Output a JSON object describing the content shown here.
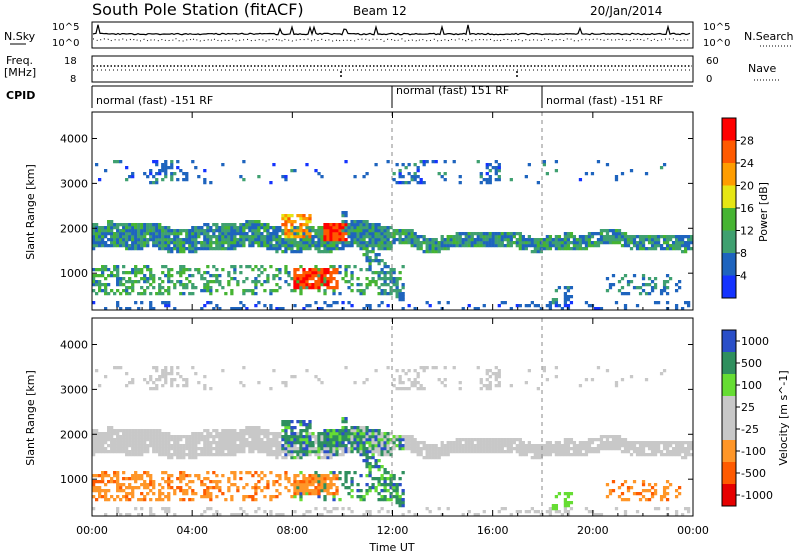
{
  "header": {
    "station": "South Pole Station (fitACF)",
    "beam": "Beam 12",
    "date": "20/Jan/2014"
  },
  "strip_panels": {
    "nsky": {
      "left_label": "N.Sky",
      "right_label": "N.Search",
      "ticks_left": [
        "10^5",
        "10^0"
      ],
      "ticks_right": [
        "10^5",
        "10^0"
      ]
    },
    "freq": {
      "left_label_1": "Freq.",
      "left_label_2": "[MHz]",
      "ticks_left": [
        "18",
        "8"
      ],
      "right_label": "Nave",
      "ticks_right": [
        "60",
        "0"
      ]
    },
    "cpid": {
      "label": "CPID",
      "segments": [
        {
          "label": "normal (fast) -151 RF",
          "start_hour": 0
        },
        {
          "label": "normal (fast) 151 RF",
          "start_hour": 12
        },
        {
          "label": "normal (fast) -151 RF",
          "start_hour": 18
        }
      ]
    }
  },
  "colors": {
    "power": [
      "#1433ff",
      "#1e64be",
      "#3fa070",
      "#46b432",
      "#e6e614",
      "#ff9d00",
      "#ff5a00",
      "#ff0000"
    ],
    "velocity": [
      "#e60000",
      "#ff5a00",
      "#ff9628",
      "#c8c8c8",
      "#c8c8c8",
      "#66dd33",
      "#2f8f5e",
      "#2a4fc8"
    ],
    "ground_scatter": "#c8c8c8"
  },
  "chart_data": [
    {
      "type": "heatmap",
      "title": "Power",
      "xlabel": "",
      "ylabel": "Slant Range [km]",
      "x_ticks": [
        "00:00",
        "04:00",
        "08:00",
        "12:00",
        "16:00",
        "20:00",
        "00:00"
      ],
      "xlim_hours": [
        0,
        24
      ],
      "y_ticks": [
        1000,
        2000,
        3000,
        4000
      ],
      "ylim_km": [
        180,
        4590
      ],
      "colorbar": {
        "label": "Power [dB]",
        "range": [
          0,
          32
        ],
        "ticks": [
          4,
          8,
          12,
          16,
          20,
          24,
          28
        ]
      },
      "features": [
        {
          "name": "main_band",
          "hours": [
            0,
            24
          ],
          "range_km": [
            1500,
            2150
          ],
          "level": "moderate"
        },
        {
          "name": "near_range_echo",
          "hours": [
            0,
            12.5
          ],
          "range_km": [
            500,
            1150
          ],
          "level": "moderate"
        },
        {
          "name": "strong_echo",
          "hours": [
            8,
            9.8
          ],
          "range_km": [
            700,
            1100
          ],
          "level": "high"
        },
        {
          "name": "strong_echo",
          "hours": [
            9.2,
            10.2
          ],
          "range_km": [
            1700,
            2100
          ],
          "level": "high"
        },
        {
          "name": "far_range_echo",
          "hours": [
            0,
            24
          ],
          "range_km": [
            3000,
            3550
          ],
          "level": "weak"
        }
      ]
    },
    {
      "type": "heatmap",
      "title": "Velocity",
      "xlabel": "Time UT",
      "ylabel": "Slant Range [km]",
      "x_ticks": [
        "00:00",
        "04:00",
        "08:00",
        "12:00",
        "16:00",
        "20:00",
        "00:00"
      ],
      "xlim_hours": [
        0,
        24
      ],
      "y_ticks": [
        1000,
        2000,
        3000,
        4000
      ],
      "ylim_km": [
        180,
        4590
      ],
      "colorbar": {
        "label": "Velocity [m s^-1]",
        "ticks": [
          "1000",
          "500",
          "100",
          "25",
          "-25",
          "-100",
          "-500",
          "-1000"
        ]
      },
      "features": [
        {
          "name": "ground_scatter_band",
          "hours": [
            0,
            24
          ],
          "range_km": [
            1500,
            2150
          ],
          "value": "ground scatter"
        },
        {
          "name": "receding_flow",
          "hours": [
            0,
            9.5
          ],
          "range_km": [
            500,
            1150
          ],
          "value": "-500"
        },
        {
          "name": "approaching_flow",
          "hours": [
            8,
            12.5
          ],
          "range_km": [
            500,
            2200
          ],
          "value": "500"
        },
        {
          "name": "receding_flow",
          "hours": [
            20.5,
            23.5
          ],
          "range_km": [
            550,
            950
          ],
          "value": "-500"
        }
      ]
    }
  ]
}
